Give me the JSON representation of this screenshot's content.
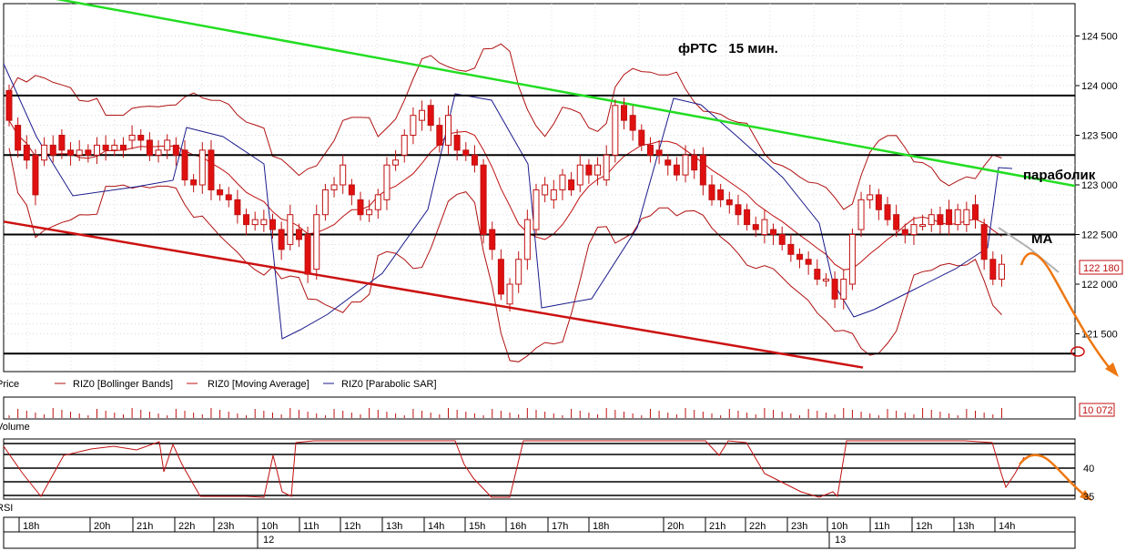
{
  "colors": {
    "candle_up": "#ffffff",
    "candle_down": "#e01010",
    "candle_outline": "#c01010",
    "bollinger": "#b01010",
    "moving_average": "#c01010",
    "parabolic_sar": "#1a1a8c",
    "trend_resistance": "#22dd22",
    "trend_support": "#cc1111",
    "horizontal_levels": "#000000",
    "forecast": "#ee7711",
    "ma_extension": "#b0b0b0",
    "rsi_line": "#c01010"
  },
  "chart_data": {
    "type": "candlestick",
    "title": "фРТС   15 мин.",
    "annotations": {
      "parabolic": "параболик",
      "ma": "MA"
    },
    "price_axis": {
      "ticks": [
        "124 500",
        "124 000",
        "123 500",
        "123 000",
        "122 500",
        "122 000",
        "121 500"
      ],
      "range": [
        121200,
        124900
      ],
      "last_price_label": "122 180",
      "last_price": 122180
    },
    "horizontal_levels": [
      123900,
      123300,
      122500,
      121300
    ],
    "trendlines": {
      "resistance": {
        "from": [
          0,
          124920
        ],
        "to": [
          264,
          122990
        ]
      },
      "support": {
        "from": [
          0,
          122630
        ],
        "to": [
          222,
          121160
        ]
      }
    },
    "legend": [
      "Price",
      "RIZ0 [Bollinger Bands]",
      "RIZ0 [Moving Average]",
      "RIZ0 [Parabolic SAR]"
    ],
    "volume": {
      "label": "Volume",
      "last_value_label": "10 072"
    },
    "rsi": {
      "label": "RSI",
      "ticks": [
        "40",
        "35"
      ],
      "levels": [
        44.5,
        42.5,
        40,
        37.5,
        35
      ]
    },
    "time_axis": {
      "hour_labels": [
        "18h",
        "20h",
        "21h",
        "22h",
        "23h",
        "10h",
        "11h",
        "12h",
        "13h",
        "14h",
        "15h",
        "16h",
        "17h",
        "18h",
        "20h",
        "21h",
        "22h",
        "23h",
        "10h",
        "11h",
        "12h",
        "13h",
        "14h"
      ],
      "day_labels": [
        "12",
        "13"
      ]
    },
    "candles": [
      [
        123950,
        123650
      ],
      [
        123600,
        123350
      ],
      [
        123400,
        123250
      ],
      [
        123300,
        122900
      ],
      [
        123250,
        123400
      ],
      [
        123400,
        123300
      ],
      [
        123500,
        123350
      ],
      [
        123350,
        123300
      ],
      [
        123300,
        123350
      ],
      [
        123350,
        123300
      ],
      [
        123300,
        123400
      ],
      [
        123400,
        123350
      ],
      [
        123350,
        123400
      ],
      [
        123400,
        123350
      ],
      [
        123450,
        123500
      ],
      [
        123500,
        123450
      ],
      [
        123450,
        123300
      ],
      [
        123300,
        123350
      ],
      [
        123350,
        123450
      ],
      [
        123400,
        123300
      ],
      [
        123350,
        123050
      ],
      [
        123050,
        123000
      ],
      [
        123000,
        123350
      ],
      [
        123350,
        122950
      ],
      [
        122950,
        122900
      ],
      [
        122900,
        122850
      ],
      [
        122850,
        122700
      ],
      [
        122700,
        122600
      ],
      [
        122600,
        122650
      ],
      [
        122600,
        122650
      ],
      [
        122650,
        122550
      ],
      [
        122550,
        122350
      ],
      [
        122400,
        122700
      ],
      [
        122550,
        122450
      ],
      [
        122500,
        122100
      ],
      [
        122150,
        122700
      ],
      [
        122700,
        122950
      ],
      [
        122950,
        123000
      ],
      [
        123000,
        123200
      ],
      [
        123000,
        122900
      ],
      [
        122850,
        122700
      ],
      [
        122700,
        122750
      ],
      [
        122750,
        122900
      ],
      [
        122850,
        123200
      ],
      [
        123200,
        123250
      ],
      [
        123300,
        123500
      ],
      [
        123500,
        123700
      ],
      [
        123650,
        123750
      ],
      [
        123800,
        123600
      ],
      [
        123600,
        123400
      ],
      [
        123400,
        123700
      ],
      [
        123500,
        123350
      ],
      [
        123350,
        123300
      ],
      [
        123300,
        123200
      ],
      [
        123200,
        122500
      ],
      [
        122550,
        122350
      ],
      [
        122250,
        121900
      ],
      [
        121800,
        122000
      ],
      [
        122000,
        122250
      ],
      [
        122250,
        122650
      ],
      [
        122550,
        122950
      ],
      [
        122900,
        123000
      ],
      [
        122850,
        122950
      ],
      [
        122950,
        123100
      ],
      [
        123050,
        122950
      ],
      [
        123000,
        123200
      ],
      [
        123200,
        123100
      ],
      [
        123100,
        123200
      ],
      [
        123050,
        123300
      ],
      [
        123300,
        123800
      ],
      [
        123800,
        123650
      ],
      [
        123700,
        123550
      ],
      [
        123550,
        123400
      ],
      [
        123400,
        123300
      ],
      [
        123350,
        123300
      ],
      [
        123250,
        123200
      ],
      [
        123200,
        123100
      ],
      [
        123100,
        123300
      ],
      [
        123300,
        123150
      ],
      [
        123300,
        123000
      ],
      [
        123000,
        122850
      ],
      [
        122950,
        122850
      ],
      [
        122850,
        122800
      ],
      [
        122800,
        122700
      ],
      [
        122750,
        122600
      ],
      [
        122600,
        122550
      ],
      [
        122500,
        122650
      ],
      [
        122550,
        122500
      ],
      [
        122500,
        122400
      ],
      [
        122400,
        122300
      ],
      [
        122300,
        122250
      ],
      [
        122250,
        122200
      ],
      [
        122150,
        122050
      ],
      [
        122050,
        122050
      ],
      [
        122050,
        121850
      ],
      [
        121850,
        122050
      ],
      [
        122000,
        122500
      ],
      [
        122550,
        122850
      ],
      [
        122850,
        122900
      ],
      [
        122900,
        122750
      ],
      [
        122800,
        122650
      ],
      [
        122700,
        122550
      ],
      [
        122550,
        122500
      ],
      [
        122500,
        122600
      ],
      [
        122600,
        122600
      ],
      [
        122600,
        122700
      ],
      [
        122700,
        122600
      ],
      [
        122750,
        122600
      ],
      [
        122600,
        122750
      ],
      [
        122600,
        122750
      ],
      [
        122800,
        122650
      ],
      [
        122600,
        122250
      ],
      [
        122250,
        122050
      ],
      [
        122050,
        122200
      ]
    ]
  }
}
